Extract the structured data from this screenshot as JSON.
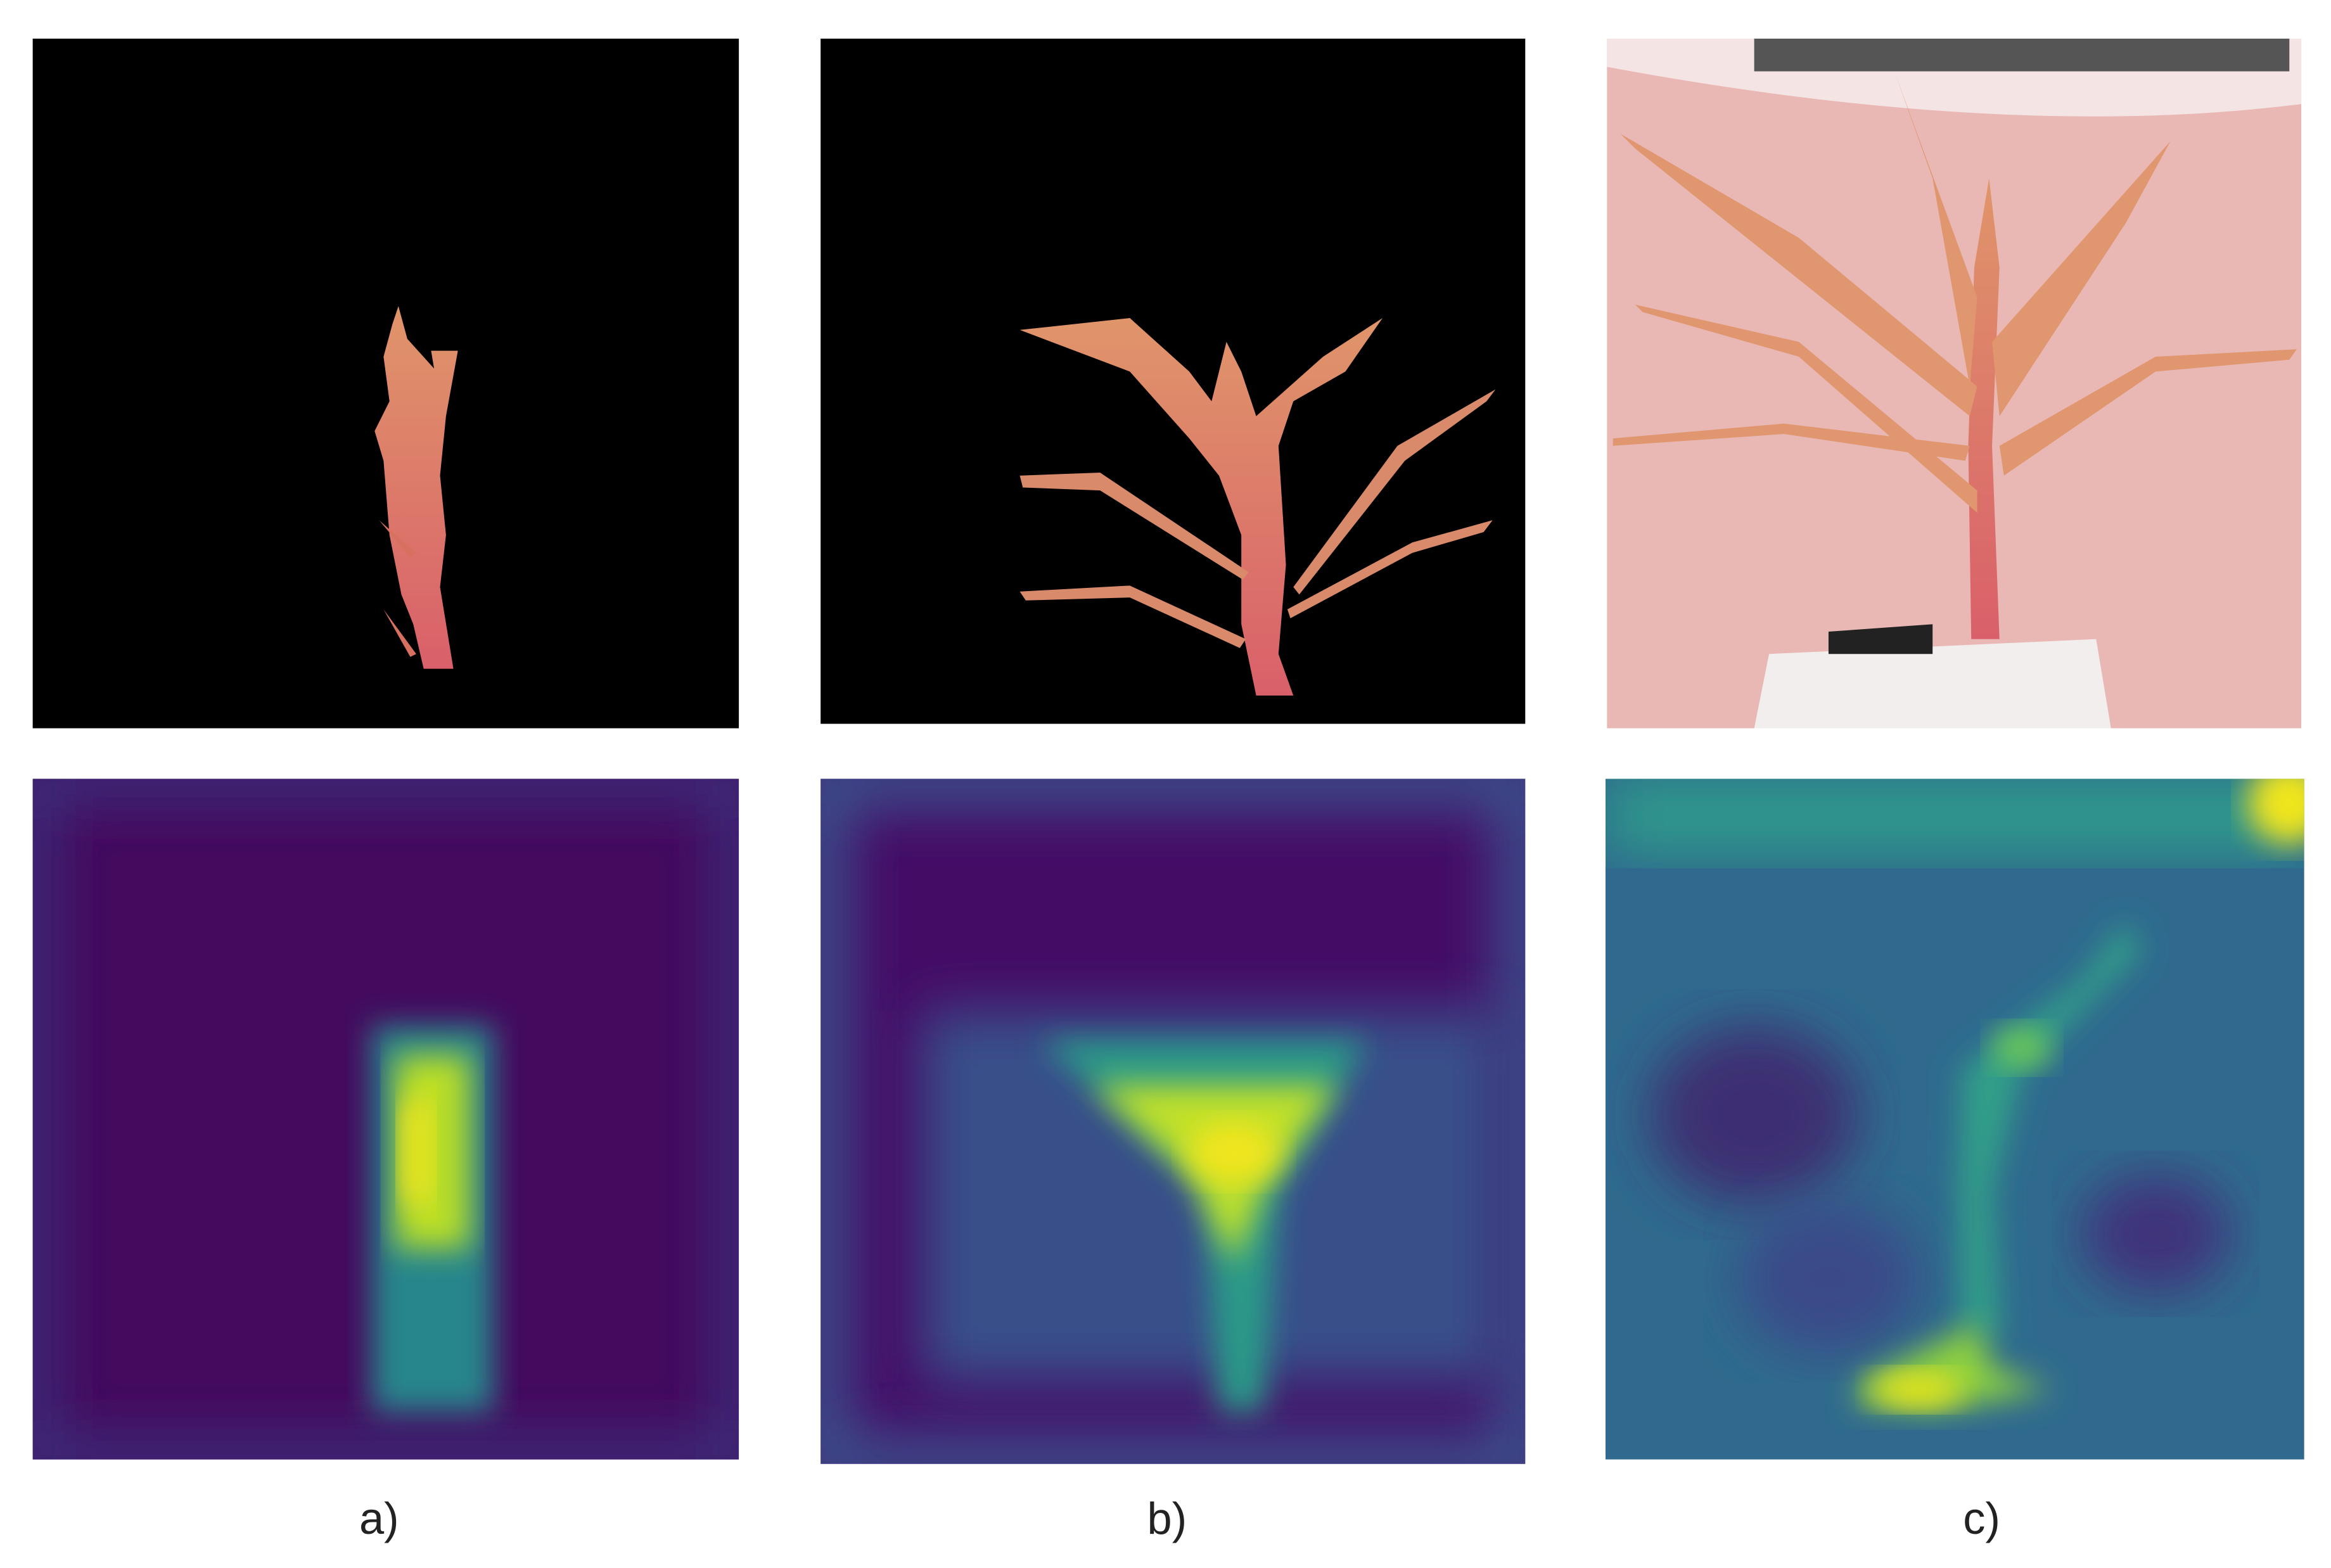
{
  "figure": {
    "labels": [
      "a)",
      "b)",
      "c)"
    ]
  }
}
